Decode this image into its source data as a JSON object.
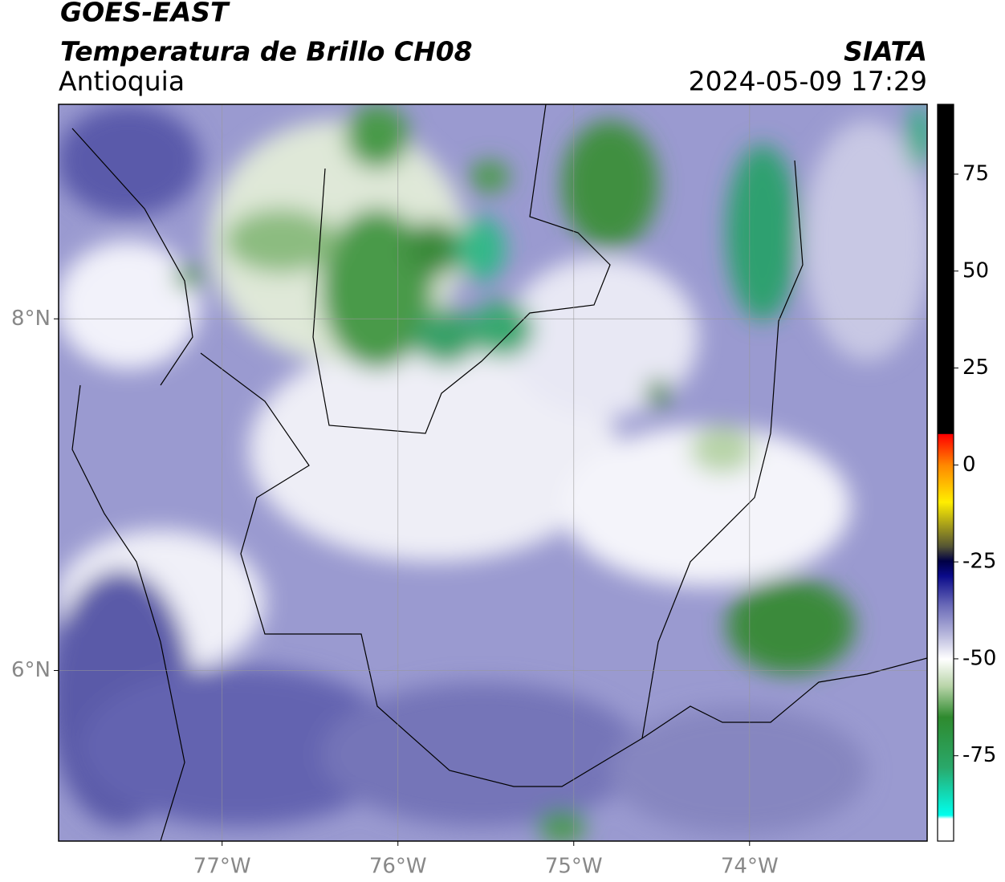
{
  "header": {
    "title": "GOES-EAST",
    "subtitle": "Temperatura de Brillo CH08",
    "region": "Antioquia",
    "source": "SIATA",
    "datetime": "2024-05-09 17:29"
  },
  "map": {
    "xlim": [
      -77.93,
      -72.99
    ],
    "ylim": [
      5.03,
      9.22
    ],
    "xticks": [
      {
        "value": -77,
        "label": "77°W"
      },
      {
        "value": -76,
        "label": "76°W"
      },
      {
        "value": -75,
        "label": "75°W"
      },
      {
        "value": -74,
        "label": "74°W"
      }
    ],
    "yticks": [
      {
        "value": 8,
        "label": "8°N"
      },
      {
        "value": 6,
        "label": "6°N"
      }
    ],
    "grid": true
  },
  "colorbar": {
    "lim": [
      -97,
      93
    ],
    "ticks": [
      75,
      50,
      25,
      0,
      -25,
      -50,
      -75
    ]
  }
}
